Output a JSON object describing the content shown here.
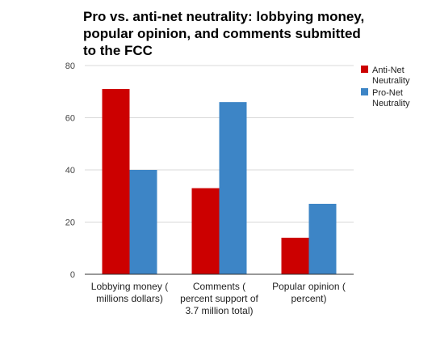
{
  "chart_data": {
    "type": "bar",
    "title_lines": [
      "Pro vs. anti-net neutrality: lobbying money,",
      "popular opinion, and comments submitted",
      "to the FCC"
    ],
    "categories": [
      [
        "Lobbying money (",
        "millions dollars)"
      ],
      [
        "Comments (",
        "percent support of",
        "3.7 million total)"
      ],
      [
        "Popular opinion (",
        "percent)"
      ]
    ],
    "series": [
      {
        "name_lines": [
          "Anti-Net",
          "Neutrality"
        ],
        "color": "#cc0000",
        "values": [
          71,
          33,
          14
        ]
      },
      {
        "name_lines": [
          "Pro-Net",
          "Neutrality"
        ],
        "color": "#3d85c6",
        "values": [
          40,
          66,
          27
        ]
      }
    ],
    "ylim": [
      0,
      80
    ],
    "yticks": [
      0,
      20,
      40,
      60,
      80
    ],
    "grid": true,
    "legend_position": "right"
  }
}
